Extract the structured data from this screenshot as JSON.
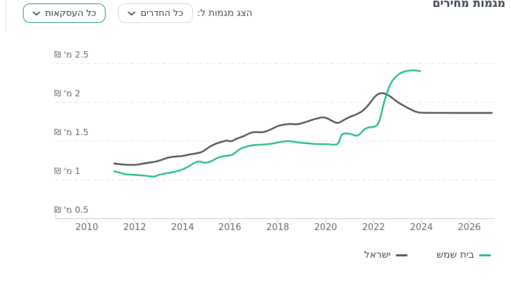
{
  "title": "מגמות מחירים",
  "controls": {
    "show_trends_label": "הצג מגמות ל:",
    "rooms_dropdown": {
      "value": "כל החדרים"
    },
    "transactions_dropdown": {
      "value": "כל העסקאות"
    }
  },
  "chart_data": {
    "type": "line",
    "title": "מגמות מחירים",
    "x_ticks": [
      2010,
      2012,
      2014,
      2016,
      2018,
      2020,
      2022,
      2024,
      2026
    ],
    "y_ticks": [
      {
        "value": 2.5,
        "label": "2.5 מ' ₪"
      },
      {
        "value": 2,
        "label": "2 מ' ₪"
      },
      {
        "value": 1.5,
        "label": "1.5 מ' ₪"
      },
      {
        "value": 1,
        "label": "1 מ' ₪"
      },
      {
        "value": 0.5,
        "label": "0.5 מ' ₪"
      }
    ],
    "xlim": [
      2008.7,
      2027.1
    ],
    "ylim": [
      0.5,
      2.78
    ],
    "y_unit": "מ' ₪",
    "grid": "dashed-horizontal",
    "legend_position": "bottom-right",
    "series": [
      {
        "name": "בית שמש",
        "color": "#1ebe78",
        "points": [
          [
            2011.15,
            1.11
          ],
          [
            2011.4,
            1.09
          ],
          [
            2011.6,
            1.07
          ],
          [
            2011.9,
            1.065
          ],
          [
            2012.2,
            1.06
          ],
          [
            2012.55,
            1.05
          ],
          [
            2012.8,
            1.035
          ],
          [
            2013.05,
            1.07
          ],
          [
            2013.5,
            1.09
          ],
          [
            2013.9,
            1.12
          ],
          [
            2014.2,
            1.16
          ],
          [
            2014.5,
            1.22
          ],
          [
            2014.7,
            1.24
          ],
          [
            2014.95,
            1.215
          ],
          [
            2015.2,
            1.235
          ],
          [
            2015.5,
            1.29
          ],
          [
            2015.8,
            1.31
          ],
          [
            2016.1,
            1.315
          ],
          [
            2016.4,
            1.4
          ],
          [
            2016.7,
            1.43
          ],
          [
            2017.0,
            1.45
          ],
          [
            2017.3,
            1.452
          ],
          [
            2017.6,
            1.46
          ],
          [
            2017.9,
            1.472
          ],
          [
            2018.15,
            1.49
          ],
          [
            2018.45,
            1.502
          ],
          [
            2018.8,
            1.482
          ],
          [
            2019.15,
            1.472
          ],
          [
            2019.5,
            1.462
          ],
          [
            2019.85,
            1.46
          ],
          [
            2020.15,
            1.458
          ],
          [
            2020.4,
            1.448
          ],
          [
            2020.55,
            1.47
          ],
          [
            2020.65,
            1.595
          ],
          [
            2020.95,
            1.6
          ],
          [
            2021.15,
            1.578
          ],
          [
            2021.35,
            1.562
          ],
          [
            2021.6,
            1.65
          ],
          [
            2021.8,
            1.678
          ],
          [
            2022.1,
            1.682
          ],
          [
            2022.25,
            1.75
          ],
          [
            2022.4,
            1.95
          ],
          [
            2022.55,
            2.12
          ],
          [
            2022.75,
            2.27
          ],
          [
            2023.0,
            2.35
          ],
          [
            2023.2,
            2.39
          ],
          [
            2023.45,
            2.405
          ],
          [
            2023.7,
            2.412
          ],
          [
            2023.95,
            2.4
          ]
        ]
      },
      {
        "name": "ישראל",
        "color": "#4e4e4e",
        "points": [
          [
            2011.15,
            1.21
          ],
          [
            2011.45,
            1.198
          ],
          [
            2011.9,
            1.19
          ],
          [
            2012.2,
            1.198
          ],
          [
            2012.5,
            1.218
          ],
          [
            2012.8,
            1.228
          ],
          [
            2013.1,
            1.252
          ],
          [
            2013.4,
            1.288
          ],
          [
            2013.7,
            1.3
          ],
          [
            2014.0,
            1.305
          ],
          [
            2014.3,
            1.328
          ],
          [
            2014.6,
            1.34
          ],
          [
            2014.85,
            1.36
          ],
          [
            2015.1,
            1.42
          ],
          [
            2015.4,
            1.468
          ],
          [
            2015.7,
            1.492
          ],
          [
            2015.85,
            1.51
          ],
          [
            2016.05,
            1.49
          ],
          [
            2016.25,
            1.53
          ],
          [
            2016.55,
            1.558
          ],
          [
            2016.85,
            1.608
          ],
          [
            2017.1,
            1.618
          ],
          [
            2017.35,
            1.608
          ],
          [
            2017.65,
            1.64
          ],
          [
            2017.95,
            1.688
          ],
          [
            2018.2,
            1.71
          ],
          [
            2018.5,
            1.722
          ],
          [
            2018.8,
            1.712
          ],
          [
            2019.1,
            1.738
          ],
          [
            2019.4,
            1.77
          ],
          [
            2019.65,
            1.792
          ],
          [
            2019.95,
            1.812
          ],
          [
            2020.25,
            1.762
          ],
          [
            2020.5,
            1.722
          ],
          [
            2020.75,
            1.77
          ],
          [
            2021.05,
            1.818
          ],
          [
            2021.3,
            1.843
          ],
          [
            2021.5,
            1.878
          ],
          [
            2021.7,
            1.932
          ],
          [
            2021.9,
            2.01
          ],
          [
            2022.1,
            2.09
          ],
          [
            2022.3,
            2.12
          ],
          [
            2022.5,
            2.11
          ],
          [
            2022.75,
            2.065
          ],
          [
            2023.0,
            2.0
          ],
          [
            2023.3,
            1.948
          ],
          [
            2023.6,
            1.898
          ],
          [
            2023.8,
            1.872
          ],
          [
            2024.0,
            1.862
          ],
          [
            2026.95,
            1.862
          ]
        ]
      }
    ]
  },
  "legend": {
    "items": [
      {
        "label": "בית שמש",
        "color": "#1ebe78"
      },
      {
        "label": "ישראל",
        "color": "#555555"
      }
    ]
  }
}
